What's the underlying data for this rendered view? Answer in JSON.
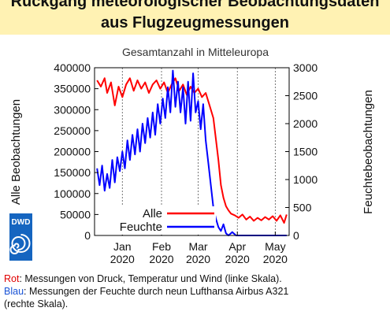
{
  "header": {
    "title_line1": "Rückgang meteorologischer Beobachtungsdaten",
    "title_line2": "aus Flugzeugmessungen"
  },
  "logo": {
    "text": "DWD",
    "icon": "dwd-swirl-icon",
    "color": "#1565c0"
  },
  "caption": {
    "line1_key": "Rot",
    "line1_text": ": Messungen von Druck, Temperatur und Wind (linke Skala).",
    "line2_key": "Blau",
    "line2_text": ": Messungen der Feuchte durch neun Lufthansa Airbus A321",
    "line3_text": "(rechte Skala)."
  },
  "chart_data": {
    "type": "line",
    "title": "Gesamtanzahl in Mitteleuropa",
    "ylabel_left": "Alle Beobachtungen",
    "ylabel_right": "Feuchtebeobachtungen",
    "xlim": [
      "2019-12-10",
      "2020-05-12"
    ],
    "ylim_left": [
      0,
      400000
    ],
    "ylim_right": [
      0,
      3000
    ],
    "yticks_left": [
      0,
      50000,
      100000,
      150000,
      200000,
      250000,
      300000,
      350000,
      400000
    ],
    "yticks_right": [
      0,
      500,
      1000,
      1500,
      2000,
      2500,
      3000
    ],
    "xticks": [
      {
        "date": "2020-01-01",
        "label1": "Jan",
        "label2": "2020"
      },
      {
        "date": "2020-02-01",
        "label1": "Feb",
        "label2": "2020"
      },
      {
        "date": "2020-03-01",
        "label1": "Mar",
        "label2": "2020"
      },
      {
        "date": "2020-04-01",
        "label1": "Apr",
        "label2": "2020"
      },
      {
        "date": "2020-05-01",
        "label1": "May",
        "label2": "2020"
      }
    ],
    "grid": "vertical-dashed",
    "legend_position": "bottom-right",
    "series": [
      {
        "name": "Alle",
        "axis": "left",
        "color": "#ff0000",
        "points": [
          [
            "2019-12-12",
            370000
          ],
          [
            "2019-12-15",
            355000
          ],
          [
            "2019-12-18",
            375000
          ],
          [
            "2019-12-20",
            340000
          ],
          [
            "2019-12-23",
            365000
          ],
          [
            "2019-12-26",
            310000
          ],
          [
            "2019-12-29",
            355000
          ],
          [
            "2020-01-01",
            330000
          ],
          [
            "2020-01-04",
            360000
          ],
          [
            "2020-01-07",
            375000
          ],
          [
            "2020-01-10",
            345000
          ],
          [
            "2020-01-13",
            370000
          ],
          [
            "2020-01-16",
            350000
          ],
          [
            "2020-01-19",
            365000
          ],
          [
            "2020-01-22",
            340000
          ],
          [
            "2020-01-25",
            360000
          ],
          [
            "2020-01-28",
            370000
          ],
          [
            "2020-01-31",
            350000
          ],
          [
            "2020-02-03",
            365000
          ],
          [
            "2020-02-06",
            340000
          ],
          [
            "2020-02-09",
            360000
          ],
          [
            "2020-02-12",
            375000
          ],
          [
            "2020-02-15",
            345000
          ],
          [
            "2020-02-18",
            360000
          ],
          [
            "2020-02-21",
            335000
          ],
          [
            "2020-02-24",
            355000
          ],
          [
            "2020-02-27",
            340000
          ],
          [
            "2020-03-01",
            350000
          ],
          [
            "2020-03-04",
            330000
          ],
          [
            "2020-03-07",
            340000
          ],
          [
            "2020-03-10",
            310000
          ],
          [
            "2020-03-13",
            280000
          ],
          [
            "2020-03-15",
            230000
          ],
          [
            "2020-03-17",
            180000
          ],
          [
            "2020-03-19",
            120000
          ],
          [
            "2020-03-21",
            90000
          ],
          [
            "2020-03-23",
            70000
          ],
          [
            "2020-03-25",
            60000
          ],
          [
            "2020-03-27",
            52000
          ],
          [
            "2020-03-30",
            48000
          ],
          [
            "2020-04-02",
            42000
          ],
          [
            "2020-04-05",
            50000
          ],
          [
            "2020-04-08",
            38000
          ],
          [
            "2020-04-11",
            45000
          ],
          [
            "2020-04-14",
            35000
          ],
          [
            "2020-04-17",
            42000
          ],
          [
            "2020-04-20",
            36000
          ],
          [
            "2020-04-23",
            44000
          ],
          [
            "2020-04-26",
            38000
          ],
          [
            "2020-04-29",
            46000
          ],
          [
            "2020-05-02",
            35000
          ],
          [
            "2020-05-05",
            48000
          ],
          [
            "2020-05-08",
            30000
          ],
          [
            "2020-05-10",
            50000
          ]
        ]
      },
      {
        "name": "Feuchte",
        "axis": "right",
        "color": "#0000ff",
        "points": [
          [
            "2019-12-12",
            1200
          ],
          [
            "2019-12-14",
            900
          ],
          [
            "2019-12-16",
            1250
          ],
          [
            "2019-12-18",
            800
          ],
          [
            "2019-12-20",
            1100
          ],
          [
            "2019-12-22",
            850
          ],
          [
            "2019-12-24",
            1350
          ],
          [
            "2019-12-26",
            950
          ],
          [
            "2019-12-28",
            1400
          ],
          [
            "2019-12-30",
            1150
          ],
          [
            "2020-01-01",
            1500
          ],
          [
            "2020-01-03",
            1200
          ],
          [
            "2020-01-05",
            1700
          ],
          [
            "2020-01-07",
            1350
          ],
          [
            "2020-01-09",
            1800
          ],
          [
            "2020-01-11",
            1450
          ],
          [
            "2020-01-13",
            1900
          ],
          [
            "2020-01-15",
            1500
          ],
          [
            "2020-01-17",
            2000
          ],
          [
            "2020-01-19",
            1650
          ],
          [
            "2020-01-21",
            2100
          ],
          [
            "2020-01-23",
            1750
          ],
          [
            "2020-01-25",
            2200
          ],
          [
            "2020-01-27",
            1800
          ],
          [
            "2020-01-29",
            2350
          ],
          [
            "2020-01-31",
            2000
          ],
          [
            "2020-02-02",
            2450
          ],
          [
            "2020-02-04",
            2100
          ],
          [
            "2020-02-06",
            2650
          ],
          [
            "2020-02-08",
            2200
          ],
          [
            "2020-02-10",
            2950
          ],
          [
            "2020-02-12",
            2300
          ],
          [
            "2020-02-14",
            2750
          ],
          [
            "2020-02-16",
            2200
          ],
          [
            "2020-02-18",
            2650
          ],
          [
            "2020-02-20",
            2000
          ],
          [
            "2020-02-22",
            2750
          ],
          [
            "2020-02-24",
            2050
          ],
          [
            "2020-02-26",
            2900
          ],
          [
            "2020-02-28",
            2200
          ],
          [
            "2020-03-01",
            2400
          ],
          [
            "2020-03-03",
            1900
          ],
          [
            "2020-03-05",
            2350
          ],
          [
            "2020-03-07",
            1700
          ],
          [
            "2020-03-09",
            1300
          ],
          [
            "2020-03-11",
            900
          ],
          [
            "2020-03-13",
            500
          ],
          [
            "2020-03-15",
            300
          ],
          [
            "2020-03-17",
            150
          ],
          [
            "2020-03-19",
            80
          ],
          [
            "2020-03-21",
            200
          ],
          [
            "2020-03-23",
            40
          ],
          [
            "2020-03-25",
            0
          ],
          [
            "2020-03-28",
            60
          ],
          [
            "2020-03-31",
            0
          ],
          [
            "2020-04-05",
            0
          ],
          [
            "2020-04-15",
            0
          ],
          [
            "2020-04-25",
            0
          ],
          [
            "2020-05-05",
            0
          ],
          [
            "2020-05-10",
            0
          ]
        ]
      }
    ]
  }
}
